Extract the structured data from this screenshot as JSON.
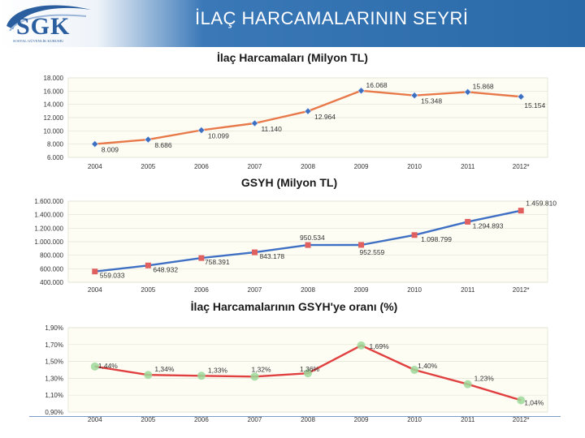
{
  "header": {
    "title": "İLAÇ HARCAMALARININ SEYRİ",
    "logo_text": "SGK",
    "logo_subtitle": "SOSYAL GÜVENLİK KURUMU"
  },
  "colors": {
    "header_blue": "#2a6aa8",
    "plot_bg": "#fdfdf4"
  },
  "chart_data": [
    {
      "type": "line",
      "title": "İlaç Harcamaları (Milyon TL)",
      "categories": [
        "2004",
        "2005",
        "2006",
        "2007",
        "2008",
        "2009",
        "2010",
        "2011",
        "2012*"
      ],
      "values": [
        8009,
        8686,
        10099,
        11140,
        12964,
        16068,
        15348,
        15868,
        15154
      ],
      "data_labels": [
        "8.009",
        "8.686",
        "10.099",
        "11.140",
        "12.964",
        "16.068",
        "15.348",
        "15.868",
        "15.154"
      ],
      "y_ticks": [
        6000,
        8000,
        10000,
        12000,
        14000,
        16000,
        18000
      ],
      "y_tick_labels": [
        "6.000",
        "8.000",
        "10.000",
        "12.000",
        "14.000",
        "16.000",
        "18.000"
      ],
      "ylim": [
        6000,
        18000
      ],
      "line_color": "#e8794a",
      "marker_color": "#3d6fc0",
      "marker": "diamond"
    },
    {
      "type": "line",
      "title": "GSYH (Milyon TL)",
      "categories": [
        "2004",
        "2005",
        "2006",
        "2007",
        "2008",
        "2009",
        "2010",
        "2011",
        "2012*"
      ],
      "values": [
        559033,
        648932,
        758391,
        843178,
        950534,
        952559,
        1098799,
        1294893,
        1459810
      ],
      "data_labels": [
        "559.033",
        "648.932",
        "758.391",
        "843.178",
        "950.534",
        "952.559",
        "1.098.799",
        "1.294.893",
        "1.459.810"
      ],
      "y_ticks": [
        400000,
        600000,
        800000,
        1000000,
        1200000,
        1400000,
        1600000
      ],
      "y_tick_labels": [
        "400.000",
        "600.000",
        "800.000",
        "1.000.000",
        "1.200.000",
        "1.400.000",
        "1.600.000"
      ],
      "ylim": [
        400000,
        1600000
      ],
      "line_color": "#3f70c4",
      "marker_color": "#e06060",
      "marker": "square"
    },
    {
      "type": "line",
      "title": "İlaç Harcamalarının GSYH'ye oranı (%)",
      "categories": [
        "2004",
        "2005",
        "2006",
        "2007",
        "2008",
        "2009",
        "2010",
        "2011",
        "2012*"
      ],
      "values": [
        1.44,
        1.34,
        1.33,
        1.32,
        1.36,
        1.69,
        1.4,
        1.23,
        1.04
      ],
      "data_labels": [
        "1,44%",
        "1,34%",
        "1,33%",
        "1,32%",
        "1,36%",
        "1,69%",
        "1,40%",
        "1,23%",
        "1,04%"
      ],
      "y_ticks": [
        0.9,
        1.1,
        1.3,
        1.5,
        1.7,
        1.9
      ],
      "y_tick_labels": [
        "0,90%",
        "1,10%",
        "1,30%",
        "1,50%",
        "1,70%",
        "1,90%"
      ],
      "ylim": [
        0.9,
        1.9
      ],
      "line_color": "#e04040",
      "marker_color": "#9ed89a",
      "marker": "circle"
    }
  ]
}
